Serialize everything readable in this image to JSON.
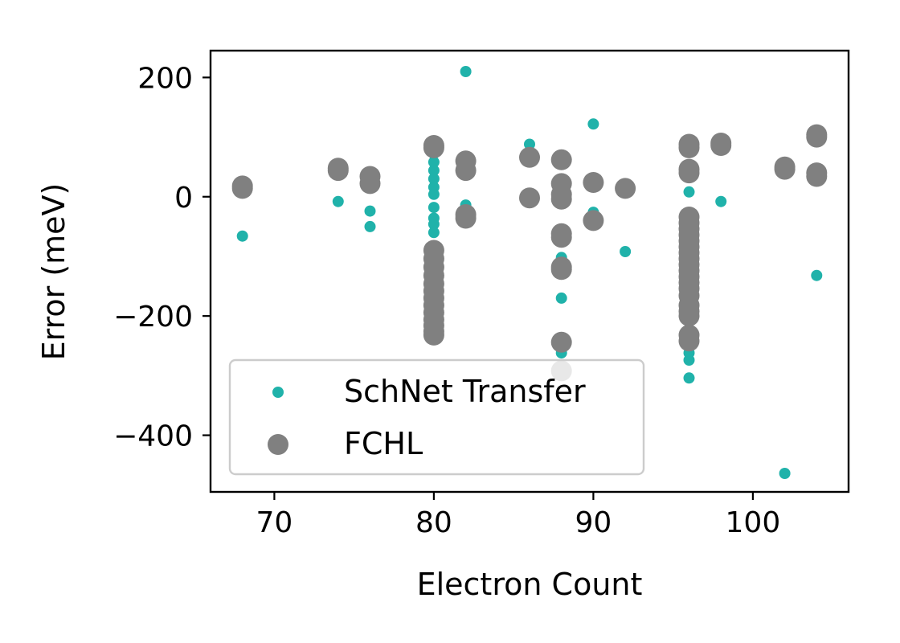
{
  "chart_data": {
    "type": "scatter",
    "title": "",
    "xlabel": "Electron Count",
    "ylabel": "Error (meV)",
    "xlim": [
      66,
      106
    ],
    "ylim": [
      -495,
      245
    ],
    "xticks": [
      70,
      80,
      90,
      100
    ],
    "yticks": [
      200,
      0,
      -200,
      -400
    ],
    "ytick_labels": [
      "200",
      "0",
      "−200",
      "−400"
    ],
    "grid": false,
    "legend_position": "lower-left",
    "series": [
      {
        "name": "SchNet Transfer",
        "color": "#20b2aa",
        "marker": "small-dot",
        "points": [
          [
            68,
            -66
          ],
          [
            74,
            -8
          ],
          [
            76,
            -24
          ],
          [
            76,
            -50
          ],
          [
            80,
            72
          ],
          [
            80,
            58
          ],
          [
            80,
            44
          ],
          [
            80,
            30
          ],
          [
            80,
            16
          ],
          [
            80,
            4
          ],
          [
            80,
            -18
          ],
          [
            80,
            -36
          ],
          [
            80,
            -46
          ],
          [
            80,
            -60
          ],
          [
            82,
            210
          ],
          [
            82,
            -14
          ],
          [
            86,
            88
          ],
          [
            88,
            -102
          ],
          [
            88,
            -170
          ],
          [
            88,
            -262
          ],
          [
            90,
            122
          ],
          [
            90,
            -26
          ],
          [
            92,
            -92
          ],
          [
            96,
            8
          ],
          [
            96,
            -262
          ],
          [
            96,
            -274
          ],
          [
            96,
            -304
          ],
          [
            98,
            -8
          ],
          [
            102,
            -464
          ],
          [
            104,
            -132
          ],
          [
            104,
            30
          ]
        ]
      },
      {
        "name": "FCHL",
        "color": "#808080",
        "marker": "large-dot",
        "points": [
          [
            68,
            18
          ],
          [
            68,
            14
          ],
          [
            74,
            44
          ],
          [
            74,
            48
          ],
          [
            76,
            34
          ],
          [
            76,
            22
          ],
          [
            80,
            86
          ],
          [
            80,
            82
          ],
          [
            80,
            -90
          ],
          [
            80,
            -104
          ],
          [
            80,
            -118
          ],
          [
            80,
            -132
          ],
          [
            80,
            -146
          ],
          [
            80,
            -158
          ],
          [
            80,
            -170
          ],
          [
            80,
            -182
          ],
          [
            80,
            -194
          ],
          [
            80,
            -206
          ],
          [
            80,
            -216
          ],
          [
            80,
            -226
          ],
          [
            80,
            -232
          ],
          [
            82,
            60
          ],
          [
            82,
            44
          ],
          [
            82,
            -30
          ],
          [
            82,
            -36
          ],
          [
            86,
            66
          ],
          [
            86,
            -2
          ],
          [
            88,
            62
          ],
          [
            88,
            22
          ],
          [
            88,
            4
          ],
          [
            88,
            -4
          ],
          [
            88,
            -62
          ],
          [
            88,
            -68
          ],
          [
            88,
            -118
          ],
          [
            88,
            -122
          ],
          [
            88,
            -244
          ],
          [
            88,
            -292
          ],
          [
            90,
            24
          ],
          [
            90,
            -40
          ],
          [
            92,
            14
          ],
          [
            96,
            88
          ],
          [
            96,
            82
          ],
          [
            96,
            46
          ],
          [
            96,
            40
          ],
          [
            96,
            -34
          ],
          [
            96,
            -44
          ],
          [
            96,
            -54
          ],
          [
            96,
            -64
          ],
          [
            96,
            -74
          ],
          [
            96,
            -84
          ],
          [
            96,
            -94
          ],
          [
            96,
            -104
          ],
          [
            96,
            -114
          ],
          [
            96,
            -124
          ],
          [
            96,
            -134
          ],
          [
            96,
            -144
          ],
          [
            96,
            -154
          ],
          [
            96,
            -166
          ],
          [
            96,
            -182
          ],
          [
            96,
            -192
          ],
          [
            96,
            -200
          ],
          [
            96,
            -232
          ],
          [
            96,
            -242
          ],
          [
            98,
            90
          ],
          [
            98,
            86
          ],
          [
            102,
            50
          ],
          [
            102,
            46
          ],
          [
            104,
            104
          ],
          [
            104,
            100
          ],
          [
            104,
            40
          ],
          [
            104,
            34
          ]
        ]
      }
    ]
  }
}
